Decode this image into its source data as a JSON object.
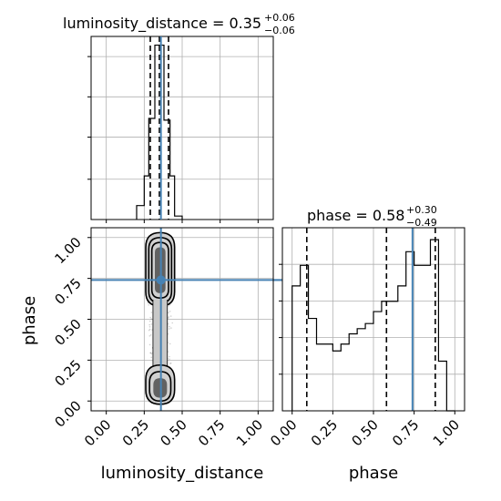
{
  "chart_data": {
    "type": "corner",
    "parameters": [
      "luminosity_distance",
      "phase"
    ],
    "truth": {
      "luminosity_distance": 0.36,
      "phase": 0.74
    },
    "colors": {
      "hist": "#000000",
      "truth": "#4682b4",
      "grid": "#b0b0b0",
      "scatter": "#000000"
    },
    "grid": true,
    "panels": {
      "luminosity_distance_hist": {
        "title_main": "luminosity_distance = 0.35",
        "title_upper": "+0.06",
        "title_lower": "−0.06",
        "median": 0.35,
        "quantiles": [
          0.29,
          0.35,
          0.41
        ],
        "xlim": [
          -0.1,
          1.1
        ],
        "ylim": [
          0,
          1.05
        ],
        "bin_edges": [
          0.2,
          0.25,
          0.28,
          0.32,
          0.35,
          0.38,
          0.42,
          0.45,
          0.5
        ],
        "counts": [
          0.08,
          0.25,
          0.58,
          1.0,
          1.0,
          0.57,
          0.25,
          0.02
        ]
      },
      "phase_hist": {
        "title_main": "phase = 0.58",
        "title_upper": "+0.30",
        "title_lower": "−0.49",
        "median": 0.58,
        "quantiles": [
          0.09,
          0.58,
          0.88
        ],
        "xlim": [
          -0.06,
          1.06
        ],
        "ylim": [
          0,
          1.07
        ],
        "bin_edges": [
          0.0,
          0.05,
          0.1,
          0.15,
          0.2,
          0.25,
          0.3,
          0.35,
          0.4,
          0.45,
          0.5,
          0.55,
          0.6,
          0.65,
          0.7,
          0.75,
          0.8,
          0.85,
          0.9,
          0.95,
          1.0
        ],
        "counts": [
          0.73,
          0.85,
          0.54,
          0.39,
          0.39,
          0.35,
          0.39,
          0.45,
          0.48,
          0.51,
          0.58,
          0.64,
          0.64,
          0.73,
          0.93,
          0.85,
          0.85,
          1.0,
          0.29,
          0.0
        ]
      },
      "joint": {
        "xlim": [
          -0.1,
          1.1
        ],
        "ylim": [
          -0.06,
          1.06
        ],
        "x_center": 0.355,
        "contour_levels": [
          0.5,
          0.5,
          0.5,
          0.5
        ],
        "dense_regions": [
          {
            "y_range": [
              0.0,
              0.22
            ],
            "x_range": [
              0.27,
              0.45
            ]
          },
          {
            "y_range": [
              0.6,
              1.0
            ],
            "x_range": [
              0.26,
              0.46
            ]
          }
        ]
      }
    },
    "axes": {
      "x_ticks": [
        "0.00",
        "0.25",
        "0.50",
        "0.75",
        "1.00"
      ],
      "x_tick_values": [
        0.0,
        0.25,
        0.5,
        0.75,
        1.0
      ],
      "y_ticks": [
        "0.00",
        "0.25",
        "0.50",
        "0.75",
        "1.00"
      ],
      "y_tick_values": [
        0.0,
        0.25,
        0.5,
        0.75,
        1.0
      ],
      "xlabel_left": "luminosity_distance",
      "xlabel_right": "phase",
      "ylabel": "phase"
    }
  }
}
